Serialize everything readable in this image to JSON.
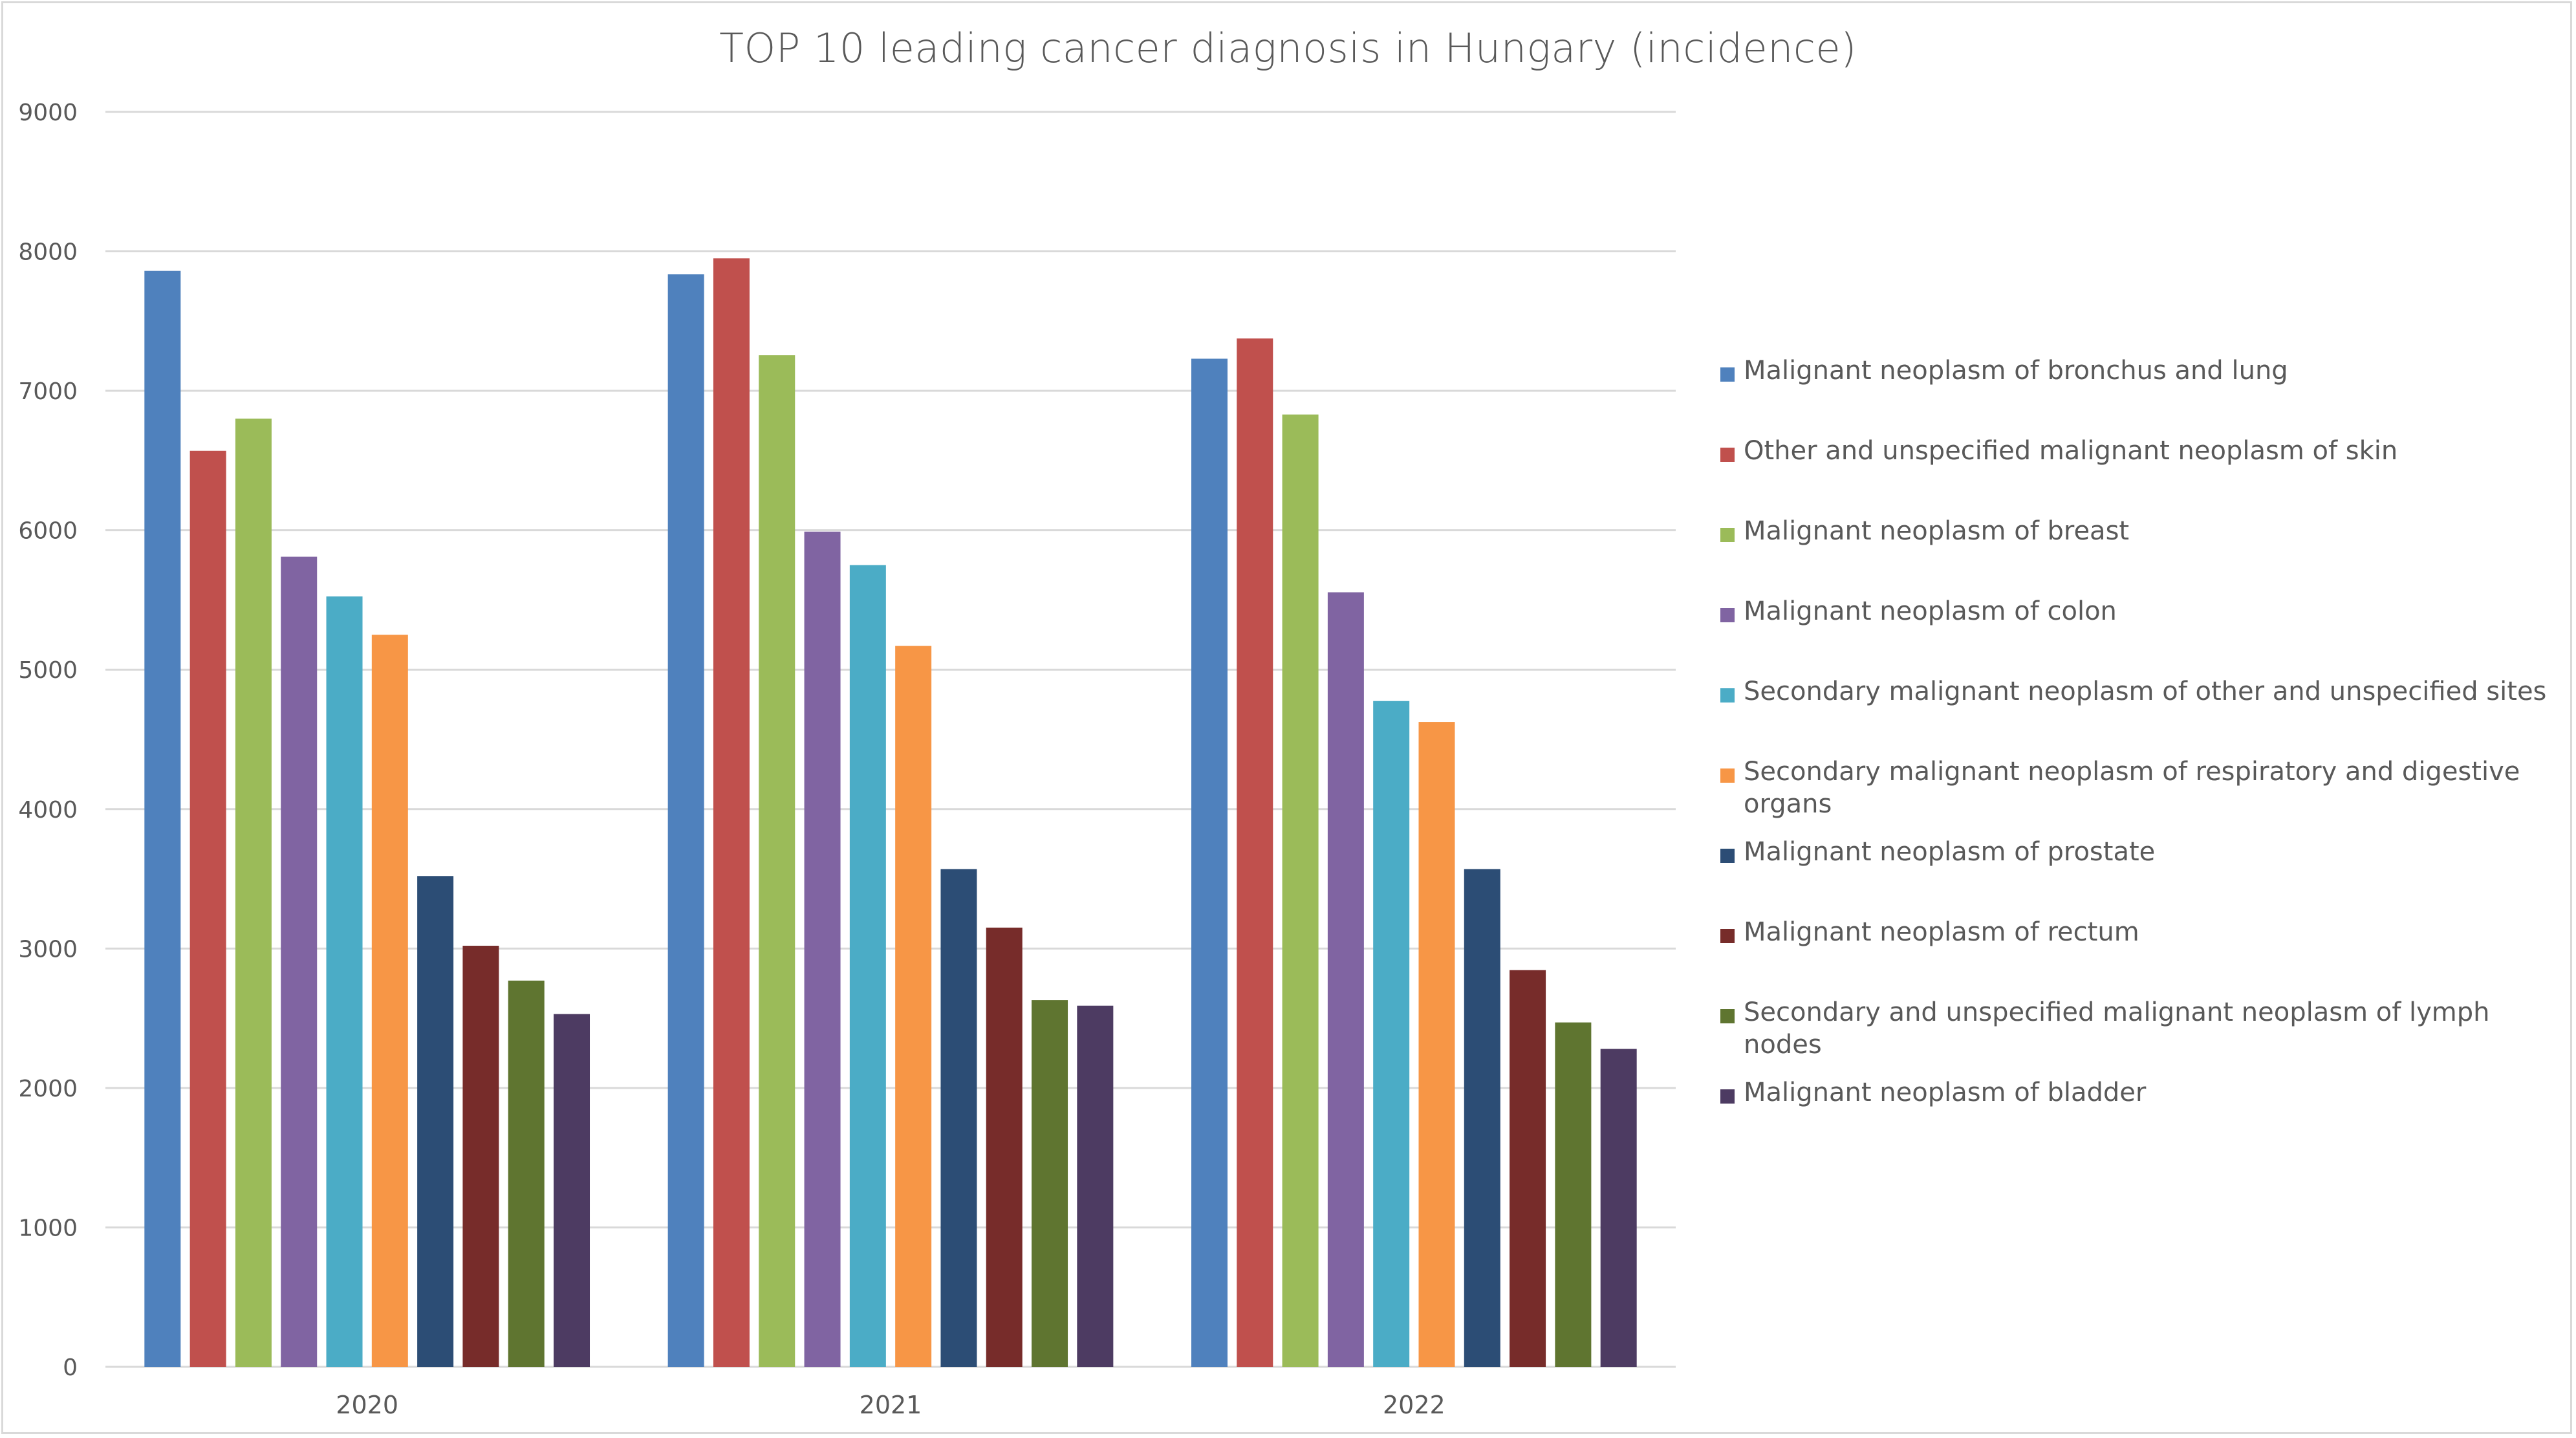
{
  "chart_data": {
    "type": "bar",
    "title": "TOP 10 leading cancer diagnosis in Hungary (incidence)",
    "xlabel": "",
    "ylabel": "",
    "ylim": [
      0,
      9000
    ],
    "yticks": [
      0,
      1000,
      2000,
      3000,
      4000,
      5000,
      6000,
      7000,
      8000,
      9000
    ],
    "grid": true,
    "legend_position": "right",
    "categories": [
      "2020",
      "2021",
      "2022"
    ],
    "series": [
      {
        "name": "Malignant neoplasm of bronchus and lung",
        "color": "#4f81bd",
        "values": [
          7860,
          7835,
          7230
        ]
      },
      {
        "name": "Other and unspecified malignant neoplasm of skin",
        "color": "#c0504d",
        "values": [
          6570,
          7950,
          7375
        ]
      },
      {
        "name": "Malignant neoplasm of breast",
        "color": "#9bbb59",
        "values": [
          6800,
          7255,
          6830
        ]
      },
      {
        "name": "Malignant neoplasm of colon",
        "color": "#8064a2",
        "values": [
          5810,
          5990,
          5555
        ]
      },
      {
        "name": "Secondary malignant neoplasm of other and unspecified sites",
        "color": "#4bacc6",
        "values": [
          5525,
          5750,
          4775
        ]
      },
      {
        "name": "Secondary malignant neoplasm of respiratory and digestive organs",
        "color": "#f79646",
        "values": [
          5250,
          5170,
          4625
        ]
      },
      {
        "name": "Malignant neoplasm of prostate",
        "color": "#2c4d75",
        "values": [
          3520,
          3570,
          3570
        ]
      },
      {
        "name": "Malignant neoplasm of rectum",
        "color": "#772c2a",
        "values": [
          3020,
          3150,
          2845
        ]
      },
      {
        "name": "Secondary and unspecified malignant neoplasm of lymph nodes",
        "color": "#5f7530",
        "values": [
          2770,
          2630,
          2470
        ]
      },
      {
        "name": "Malignant neoplasm of bladder",
        "color": "#4d3b62",
        "values": [
          2530,
          2590,
          2280
        ]
      }
    ]
  }
}
